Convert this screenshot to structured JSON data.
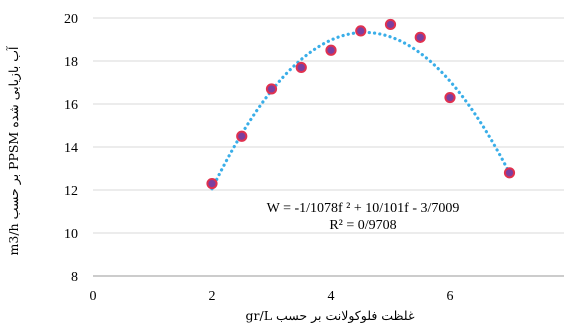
{
  "chart_data": {
    "type": "scatter",
    "xlabel": "غلظت فلوکولانت بر حسب gr/L",
    "ylabel": "آب بازیابی شده PPSM بر حسب m3/h",
    "xlim": [
      0,
      8
    ],
    "ylim": [
      8,
      20
    ],
    "x_ticks": [
      0,
      2,
      4,
      6,
      8
    ],
    "y_ticks": [
      8,
      10,
      12,
      14,
      16,
      18,
      20
    ],
    "x_tick_labels": [
      "0",
      "2",
      "4",
      "6",
      "8"
    ],
    "y_tick_labels": [
      "8",
      "10",
      "12",
      "14",
      "16",
      "18",
      "20"
    ],
    "grid": "horizontal",
    "series": [
      {
        "x": [
          2,
          2.5,
          3,
          3.5,
          4,
          4.5,
          5,
          5.5,
          6,
          7
        ],
        "y": [
          12.3,
          14.5,
          16.7,
          17.7,
          18.5,
          19.4,
          19.7,
          19.1,
          16.3,
          12.8
        ],
        "marker_color": "#7b3fa0",
        "marker_edge_color": "#e0314f"
      }
    ],
    "trendline": {
      "type": "polynomial",
      "order": 2,
      "x_range": [
        2,
        7
      ],
      "color": "#3aaee8",
      "equation_text": "W = -1/1078f ² + 10/101f - 3/7009",
      "r2_text": "R² = 0/9708"
    }
  }
}
